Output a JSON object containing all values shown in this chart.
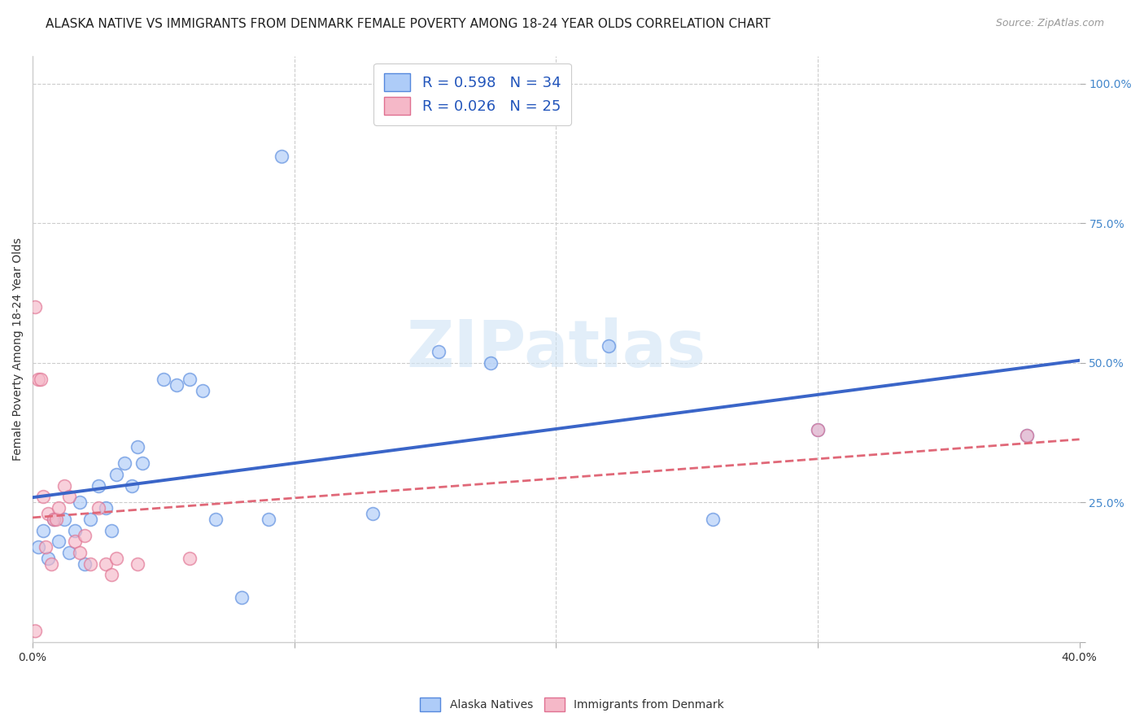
{
  "title": "ALASKA NATIVE VS IMMIGRANTS FROM DENMARK FEMALE POVERTY AMONG 18-24 YEAR OLDS CORRELATION CHART",
  "source": "Source: ZipAtlas.com",
  "ylabel": "Female Poverty Among 18-24 Year Olds",
  "xlim": [
    0.0,
    0.4
  ],
  "ylim": [
    0.0,
    1.05
  ],
  "xtick_positions": [
    0.0,
    0.1,
    0.2,
    0.3,
    0.4
  ],
  "xtick_labels": [
    "0.0%",
    "",
    "",
    "",
    "40.0%"
  ],
  "ytick_positions": [
    0.0,
    0.25,
    0.5,
    0.75,
    1.0
  ],
  "ytick_labels": [
    "",
    "25.0%",
    "50.0%",
    "75.0%",
    "100.0%"
  ],
  "legend1_label": "R = 0.598   N = 34",
  "legend2_label": "R = 0.026   N = 25",
  "legend1_color": "#aeccf8",
  "legend2_color": "#f5b8c8",
  "line1_color": "#3a65c8",
  "line2_color": "#e06878",
  "background_color": "#ffffff",
  "grid_color": "#cccccc",
  "watermark": "ZIPatlas",
  "scatter1_color": "#aeccf8",
  "scatter2_color": "#f5b8c8",
  "scatter1_edge": "#5588dd",
  "scatter2_edge": "#e07090",
  "alaska_x": [
    0.002,
    0.004,
    0.006,
    0.008,
    0.01,
    0.012,
    0.014,
    0.016,
    0.018,
    0.02,
    0.022,
    0.025,
    0.028,
    0.03,
    0.032,
    0.035,
    0.038,
    0.04,
    0.042,
    0.05,
    0.055,
    0.06,
    0.065,
    0.07,
    0.08,
    0.09,
    0.095,
    0.13,
    0.155,
    0.175,
    0.22,
    0.26,
    0.3,
    0.38
  ],
  "alaska_y": [
    0.17,
    0.2,
    0.15,
    0.22,
    0.18,
    0.22,
    0.16,
    0.2,
    0.25,
    0.14,
    0.22,
    0.28,
    0.24,
    0.2,
    0.3,
    0.32,
    0.28,
    0.35,
    0.32,
    0.47,
    0.46,
    0.47,
    0.45,
    0.22,
    0.08,
    0.22,
    0.87,
    0.23,
    0.52,
    0.5,
    0.53,
    0.22,
    0.38,
    0.37
  ],
  "denmark_x": [
    0.001,
    0.001,
    0.002,
    0.003,
    0.004,
    0.005,
    0.006,
    0.007,
    0.008,
    0.009,
    0.01,
    0.012,
    0.014,
    0.016,
    0.018,
    0.02,
    0.022,
    0.025,
    0.028,
    0.03,
    0.032,
    0.04,
    0.06,
    0.3,
    0.38
  ],
  "denmark_y": [
    0.02,
    0.6,
    0.47,
    0.47,
    0.26,
    0.17,
    0.23,
    0.14,
    0.22,
    0.22,
    0.24,
    0.28,
    0.26,
    0.18,
    0.16,
    0.19,
    0.14,
    0.24,
    0.14,
    0.12,
    0.15,
    0.14,
    0.15,
    0.38,
    0.37
  ],
  "title_fontsize": 11,
  "axis_label_fontsize": 10,
  "tick_fontsize": 10,
  "legend_fontsize": 13,
  "scatter_size": 130,
  "scatter_alpha": 0.65
}
